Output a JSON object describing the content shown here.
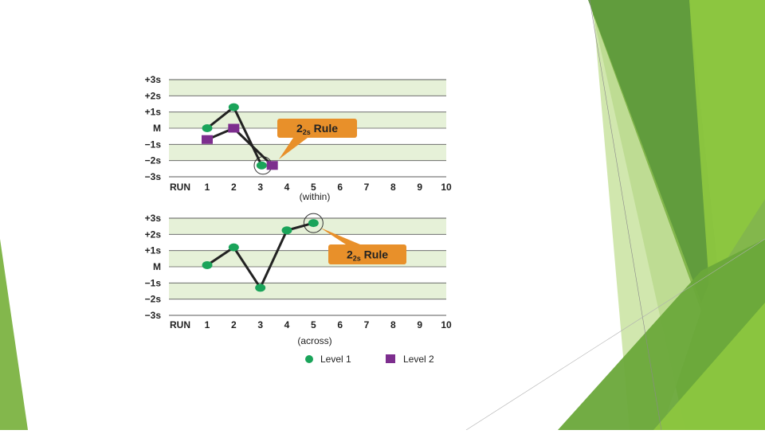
{
  "colors": {
    "band_light": "#e6f1d8",
    "band_white": "#ffffff",
    "grid_line": "#5a5a5a",
    "line": "#222222",
    "level1": "#1aa45a",
    "level2": "#7d2e8e",
    "callout": "#e8902a",
    "deco_green_dark": "#5f9a3c",
    "deco_green_mid": "#7cb342",
    "deco_green_light": "#c9e3a0"
  },
  "chart_data": [
    {
      "type": "line",
      "xlabel": "(within)",
      "x_label_prefix": "RUN",
      "categories": [
        "1",
        "2",
        "3",
        "4",
        "5",
        "6",
        "7",
        "8",
        "9",
        "10"
      ],
      "y_tick_labels": [
        "+3s",
        "+2s",
        "+1s",
        "M",
        "−1s",
        "−2s",
        "−3s"
      ],
      "ylim": [
        -3,
        3
      ],
      "series": [
        {
          "name": "Level 1",
          "marker": "circle",
          "x": [
            1,
            2,
            3.05
          ],
          "y": [
            0,
            1.3,
            -2.3
          ]
        },
        {
          "name": "Level 2",
          "marker": "square",
          "x": [
            1,
            2,
            3.45
          ],
          "y": [
            -0.7,
            0,
            -2.3
          ]
        }
      ],
      "callout": {
        "main": "2",
        "sub": "2s",
        "rule": "Rule"
      }
    },
    {
      "type": "line",
      "xlabel": "(across)",
      "x_label_prefix": "RUN",
      "categories": [
        "1",
        "2",
        "3",
        "4",
        "5",
        "6",
        "7",
        "8",
        "9",
        "10"
      ],
      "y_tick_labels": [
        "+3s",
        "+2s",
        "+1s",
        "M",
        "−1s",
        "−2s",
        "−3s"
      ],
      "ylim": [
        -3,
        3
      ],
      "series": [
        {
          "name": "Level 1",
          "marker": "circle",
          "x": [
            1,
            2,
            3,
            4,
            5
          ],
          "y": [
            0.1,
            1.2,
            -1.3,
            2.25,
            2.7
          ]
        }
      ],
      "callout": {
        "main": "2",
        "sub": "2s",
        "rule": "Rule"
      }
    }
  ],
  "legend": {
    "placement": "bottom",
    "items": [
      {
        "label": "Level 1",
        "marker": "circle"
      },
      {
        "label": "Level 2",
        "marker": "square"
      }
    ]
  }
}
